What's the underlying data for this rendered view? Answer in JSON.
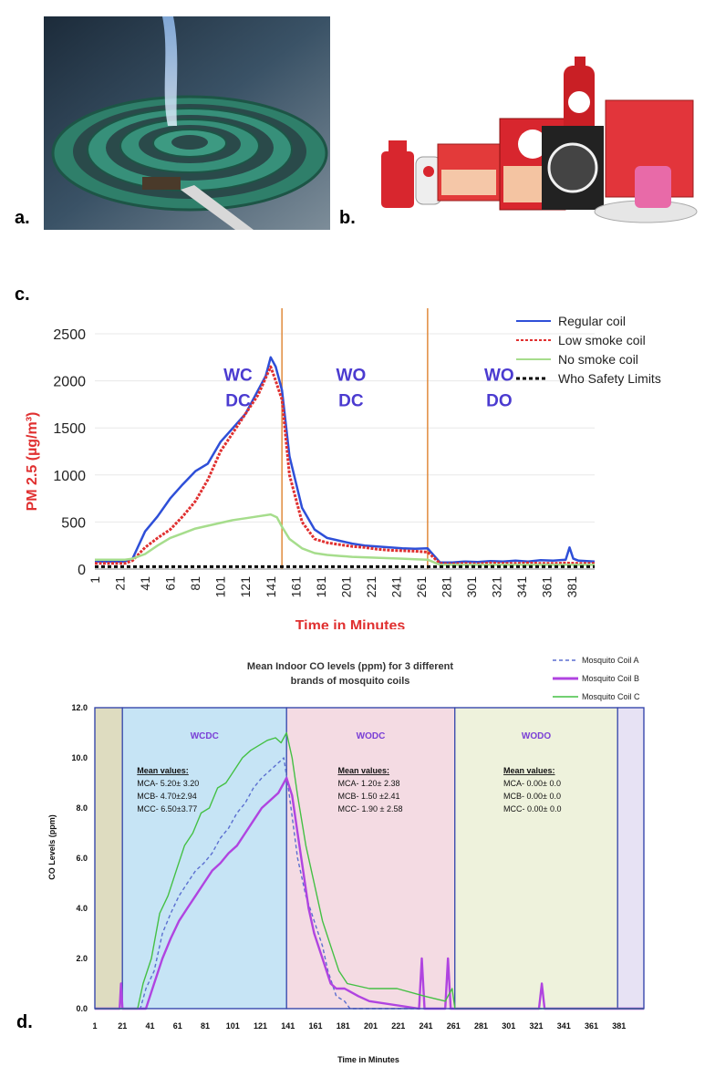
{
  "panels": {
    "a": "a.",
    "b": "b.",
    "c": "c.",
    "d": "d."
  },
  "colors": {
    "coil_ring": "#2f7f6a",
    "smoke": "#7fb0e6",
    "brand_red": "#d7262b"
  },
  "chart_data": [
    {
      "type": "line",
      "title": "",
      "xlabel": "Time in Minutes",
      "ylabel": "PM 2.5 (µg/m³)",
      "ylim": [
        0,
        2500
      ],
      "xlim": [
        1,
        399
      ],
      "yticks": [
        0,
        500,
        1000,
        1500,
        2000,
        2500
      ],
      "xticks": [
        1,
        21,
        41,
        61,
        81,
        101,
        121,
        141,
        161,
        181,
        201,
        221,
        241,
        261,
        281,
        301,
        321,
        341,
        361,
        381
      ],
      "phase_dividers": [
        150,
        266
      ],
      "phase_labels": [
        {
          "line1": "WC",
          "line2": "DC",
          "x": 115,
          "y": 2000
        },
        {
          "line1": "WO",
          "line2": "DC",
          "x": 205,
          "y": 2000
        },
        {
          "line1": "WO",
          "line2": "DO",
          "x": 323,
          "y": 2000
        }
      ],
      "series": [
        {
          "name": "Regular coil",
          "color": "#2e4fd8",
          "x": [
            1,
            25,
            31,
            41,
            51,
            61,
            71,
            81,
            91,
            101,
            111,
            121,
            131,
            137,
            141,
            145,
            150,
            156,
            166,
            176,
            186,
            196,
            206,
            216,
            226,
            236,
            246,
            256,
            266,
            276,
            286,
            296,
            306,
            316,
            326,
            336,
            346,
            356,
            366,
            376,
            379,
            382,
            386,
            399
          ],
          "values": [
            80,
            80,
            110,
            400,
            560,
            750,
            900,
            1040,
            1120,
            1350,
            1500,
            1650,
            1900,
            2050,
            2250,
            2150,
            1900,
            1200,
            650,
            420,
            330,
            300,
            270,
            250,
            240,
            230,
            220,
            215,
            220,
            70,
            70,
            80,
            75,
            85,
            80,
            90,
            80,
            95,
            90,
            100,
            230,
            110,
            90,
            80
          ]
        },
        {
          "name": "Low smoke coil",
          "color": "#e03030",
          "x": [
            1,
            25,
            31,
            41,
            51,
            61,
            71,
            81,
            91,
            101,
            111,
            121,
            131,
            141,
            145,
            150,
            156,
            166,
            176,
            186,
            196,
            206,
            216,
            226,
            236,
            246,
            256,
            266,
            276,
            286,
            296,
            306,
            316,
            326,
            336,
            346,
            356,
            366,
            376,
            386,
            399
          ],
          "values": [
            60,
            60,
            90,
            230,
            330,
            420,
            560,
            720,
            950,
            1250,
            1450,
            1650,
            1850,
            2150,
            2000,
            1800,
            1000,
            500,
            320,
            280,
            260,
            240,
            230,
            210,
            200,
            195,
            190,
            180,
            60,
            55,
            60,
            55,
            65,
            60,
            60,
            65,
            60,
            60,
            65,
            60,
            60
          ]
        },
        {
          "name": "No smoke coil",
          "color": "#a6dd8c",
          "x": [
            1,
            25,
            31,
            41,
            51,
            61,
            71,
            81,
            91,
            101,
            111,
            121,
            131,
            141,
            146,
            150,
            156,
            166,
            176,
            186,
            196,
            206,
            216,
            226,
            236,
            246,
            256,
            266,
            276,
            286,
            296,
            306,
            316,
            326,
            336,
            346,
            356,
            366,
            376,
            386,
            399
          ],
          "values": [
            100,
            100,
            110,
            160,
            250,
            330,
            380,
            430,
            460,
            490,
            520,
            540,
            560,
            580,
            550,
            450,
            320,
            220,
            170,
            150,
            140,
            130,
            125,
            120,
            115,
            110,
            105,
            100,
            45,
            45,
            45,
            45,
            45,
            45,
            45,
            45,
            45,
            45,
            45,
            45,
            45
          ]
        },
        {
          "name": "Who Safety Limits",
          "color": "#000000",
          "x": [
            1,
            399
          ],
          "values": [
            25,
            25
          ]
        }
      ],
      "legend": "top-right"
    },
    {
      "type": "line",
      "title": "Mean Indoor CO levels (ppm) for 3 different brands of mosquito coils",
      "title_line1": "Mean Indoor CO levels (ppm) for 3 different",
      "title_line2": "brands of mosquito coils",
      "xlabel": "Time in Minutes",
      "ylabel": "CO Levels (ppm)",
      "ylim": [
        0,
        12
      ],
      "xlim": [
        1,
        399
      ],
      "yticks": [
        "0.0",
        "2.0",
        "4.0",
        "6.0",
        "8.0",
        "10.0",
        "12.0"
      ],
      "xticks": [
        1,
        21,
        41,
        61,
        81,
        101,
        121,
        141,
        161,
        181,
        201,
        221,
        241,
        261,
        281,
        301,
        321,
        341,
        361,
        381
      ],
      "regions": [
        {
          "from": 1,
          "to": 21,
          "color": "#dedcc0",
          "label": ""
        },
        {
          "from": 21,
          "to": 140,
          "color": "#c6e4f5",
          "label": "WCDC"
        },
        {
          "from": 140,
          "to": 262,
          "color": "#f4dbe3",
          "label": "WODC"
        },
        {
          "from": 262,
          "to": 380,
          "color": "#eef2dc",
          "label": "WODO"
        },
        {
          "from": 380,
          "to": 399,
          "color": "#e7e2f4",
          "label": ""
        }
      ],
      "mean_values": [
        {
          "heading": "Mean values:",
          "lines": [
            "MCA- 5.20± 3.20",
            "MCB- 4.70±2.94",
            "MCC- 6.50±3.77"
          ]
        },
        {
          "heading": "Mean values:",
          "lines": [
            "MCA- 1.20± 2.38",
            "MCB- 1.50 ±2.41",
            "MCC- 1.90 ± 2.58"
          ]
        },
        {
          "heading": "Mean values:",
          "lines": [
            "MCA- 0.00± 0.0",
            "MCB- 0.00± 0.0",
            "MCC- 0.00± 0.0"
          ]
        }
      ],
      "series": [
        {
          "name": "Mosquito Coil A",
          "color": "#5b6fd0",
          "dash": "4,3",
          "x": [
            1,
            34,
            38,
            44,
            50,
            56,
            62,
            68,
            74,
            80,
            86,
            92,
            98,
            104,
            110,
            116,
            122,
            128,
            134,
            138,
            142,
            148,
            154,
            160,
            166,
            170,
            176,
            182,
            186,
            399
          ],
          "values": [
            0,
            0,
            0.8,
            1.5,
            3.0,
            3.8,
            4.5,
            5.0,
            5.5,
            5.8,
            6.2,
            6.8,
            7.2,
            7.8,
            8.2,
            8.8,
            9.2,
            9.5,
            9.8,
            10.0,
            8.5,
            6.0,
            4.5,
            3.5,
            2.5,
            1.5,
            0.5,
            0.3,
            0,
            0
          ]
        },
        {
          "name": "Mosquito Coil B",
          "color": "#b044e0",
          "dash": "",
          "x": [
            1,
            19,
            20,
            21,
            38,
            44,
            50,
            56,
            62,
            68,
            74,
            80,
            86,
            92,
            98,
            104,
            110,
            116,
            122,
            128,
            134,
            140,
            144,
            148,
            152,
            156,
            160,
            166,
            172,
            176,
            182,
            192,
            200,
            236,
            238,
            240,
            255,
            257,
            259,
            323,
            325,
            327,
            399
          ],
          "values": [
            0,
            0,
            1.0,
            0,
            0,
            1.0,
            2.0,
            2.8,
            3.5,
            4.0,
            4.5,
            5.0,
            5.5,
            5.8,
            6.2,
            6.5,
            7.0,
            7.5,
            8.0,
            8.3,
            8.6,
            9.2,
            8.5,
            7.0,
            5.5,
            4.0,
            3.0,
            2.0,
            1.0,
            0.8,
            0.8,
            0.5,
            0.3,
            0,
            2.0,
            0,
            0,
            2.0,
            0,
            0,
            1.0,
            0,
            0
          ]
        },
        {
          "name": "Mosquito Coil C",
          "color": "#44c044",
          "dash": "",
          "x": [
            1,
            32,
            36,
            42,
            48,
            54,
            60,
            66,
            72,
            78,
            84,
            90,
            96,
            102,
            108,
            114,
            120,
            126,
            132,
            136,
            140,
            144,
            148,
            154,
            160,
            166,
            172,
            178,
            184,
            200,
            220,
            240,
            255,
            260,
            262,
            399
          ],
          "values": [
            0,
            0,
            1.0,
            2.0,
            3.8,
            4.5,
            5.5,
            6.5,
            7.0,
            7.8,
            8.0,
            8.8,
            9.0,
            9.5,
            10.0,
            10.3,
            10.5,
            10.7,
            10.8,
            10.6,
            11.0,
            10.0,
            8.5,
            6.5,
            5.0,
            3.5,
            2.5,
            1.5,
            1.0,
            0.8,
            0.8,
            0.5,
            0.3,
            0.8,
            0,
            0
          ]
        }
      ],
      "legend": "top-right"
    }
  ]
}
